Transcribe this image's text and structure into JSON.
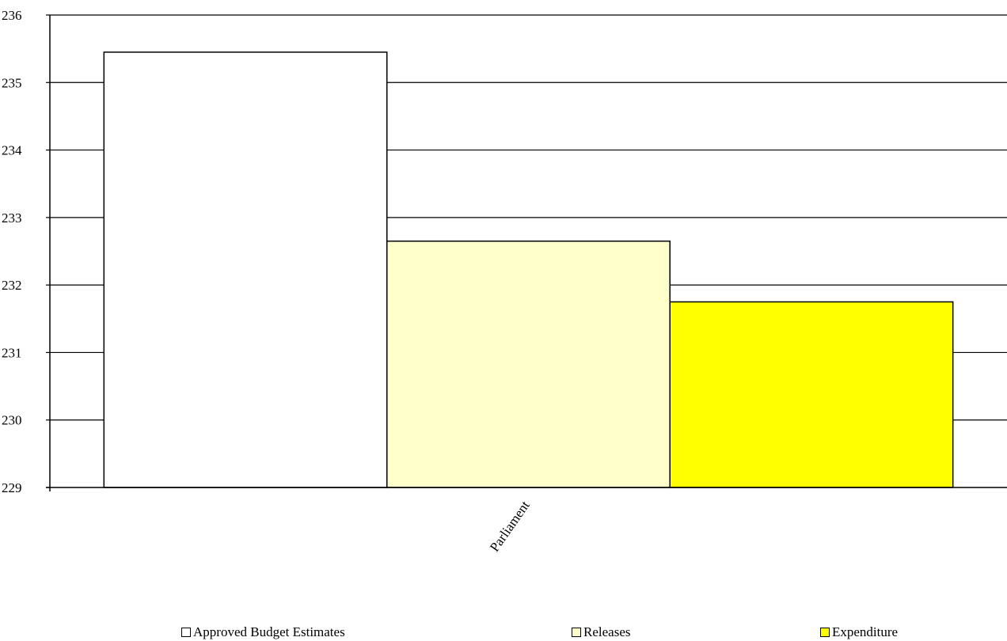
{
  "chart_data": {
    "type": "bar",
    "categories": [
      "Parliament"
    ],
    "series": [
      {
        "name": "Approved Budget Estimates",
        "values": [
          235.45
        ],
        "color": "#FFFFFF"
      },
      {
        "name": "Releases",
        "values": [
          232.65
        ],
        "color": "#FFFFCC"
      },
      {
        "name": "Expenditure",
        "values": [
          231.75
        ],
        "color": "#FFFF00"
      }
    ],
    "ylim": [
      229,
      236
    ],
    "yticks": [
      "229",
      "230",
      "231",
      "232",
      "233",
      "234",
      "235",
      "236"
    ],
    "grid": true,
    "legend_position": "bottom"
  }
}
